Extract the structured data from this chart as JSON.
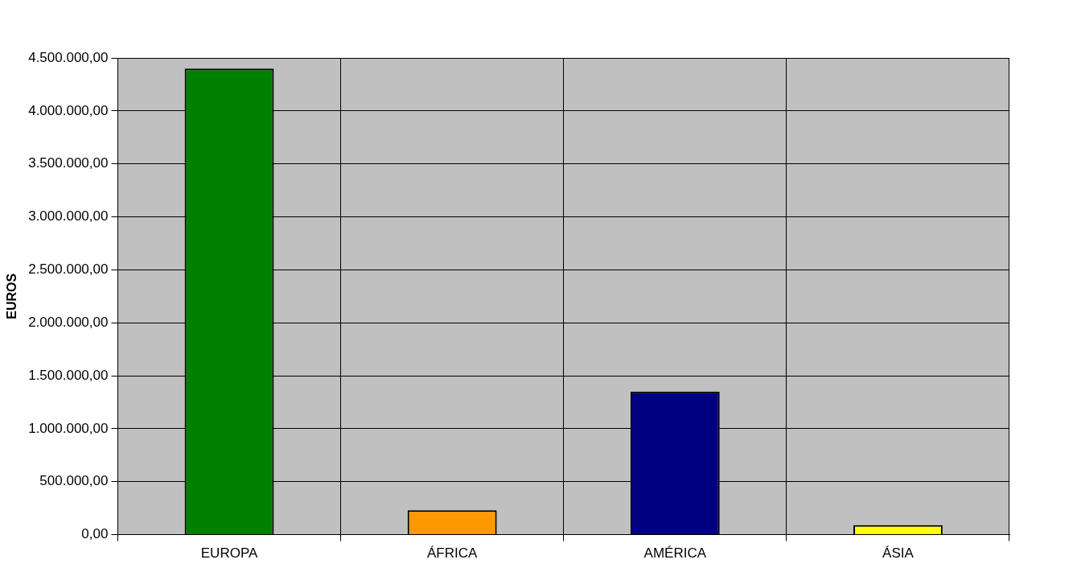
{
  "chart_data": {
    "type": "bar",
    "ylabel": "EUROS",
    "categories": [
      "EUROPA",
      "ÁFRICA",
      "AMÉRICA",
      "ÁSIA"
    ],
    "values": [
      4400000,
      230000,
      1350000,
      90000
    ],
    "colors": [
      "#008000",
      "#ff9900",
      "#000080",
      "#ffff00"
    ],
    "ylim": [
      0,
      4500000
    ],
    "yticks": [
      {
        "value": 0,
        "label": "0,00"
      },
      {
        "value": 500000,
        "label": "500.000,00"
      },
      {
        "value": 1000000,
        "label": "1.000.000,00"
      },
      {
        "value": 1500000,
        "label": "1.500.000,00"
      },
      {
        "value": 2000000,
        "label": "2.000.000,00"
      },
      {
        "value": 2500000,
        "label": "2.500.000,00"
      },
      {
        "value": 3000000,
        "label": "3.000.000,00"
      },
      {
        "value": 3500000,
        "label": "3.500.000,00"
      },
      {
        "value": 4000000,
        "label": "4.000.000,00"
      },
      {
        "value": 4500000,
        "label": "4.500.000,00"
      }
    ],
    "grid": true
  }
}
